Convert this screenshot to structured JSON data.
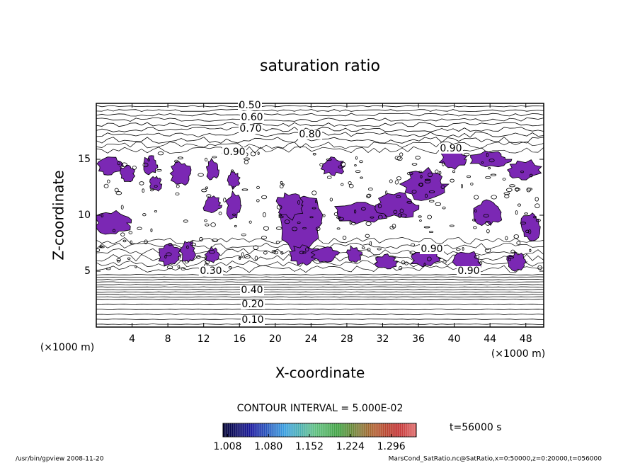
{
  "chart_data": {
    "type": "contour",
    "title": "saturation ratio",
    "x_label": "X-coordinate",
    "y_label": "Z-coordinate",
    "x_unit": "(×1000 m)",
    "y_unit": "(×1000 m)",
    "xlim": [
      0,
      50
    ],
    "xticks": [
      4,
      8,
      12,
      16,
      20,
      24,
      28,
      32,
      36,
      40,
      44,
      48
    ],
    "ylim": [
      0,
      20
    ],
    "yticks": [
      5,
      10,
      15
    ],
    "contour_labels": [
      "0.50",
      "0.60",
      "0.70",
      "0.80",
      "0.90",
      "0.90",
      "0.90",
      "0.90",
      "0.30",
      "0.40",
      "0.20",
      "0.10"
    ],
    "contour_interval": "CONTOUR INTERVAL = 5.000E-02",
    "shade_color": "#7b28b4",
    "colorbar": {
      "lim": [
        1.0,
        1.34
      ],
      "ticks": [
        1.008,
        {
          "value": 1.08,
          "label": "1.080"
        },
        1.152,
        1.224,
        1.296
      ]
    },
    "time_label": "t=56000 s",
    "footer_left": "/usr/bin/gpview  2008-11-20",
    "footer_right": "MarsCond_SatRatio.nc@SatRatio,x=0:50000,z=0:20000,t=056000"
  }
}
